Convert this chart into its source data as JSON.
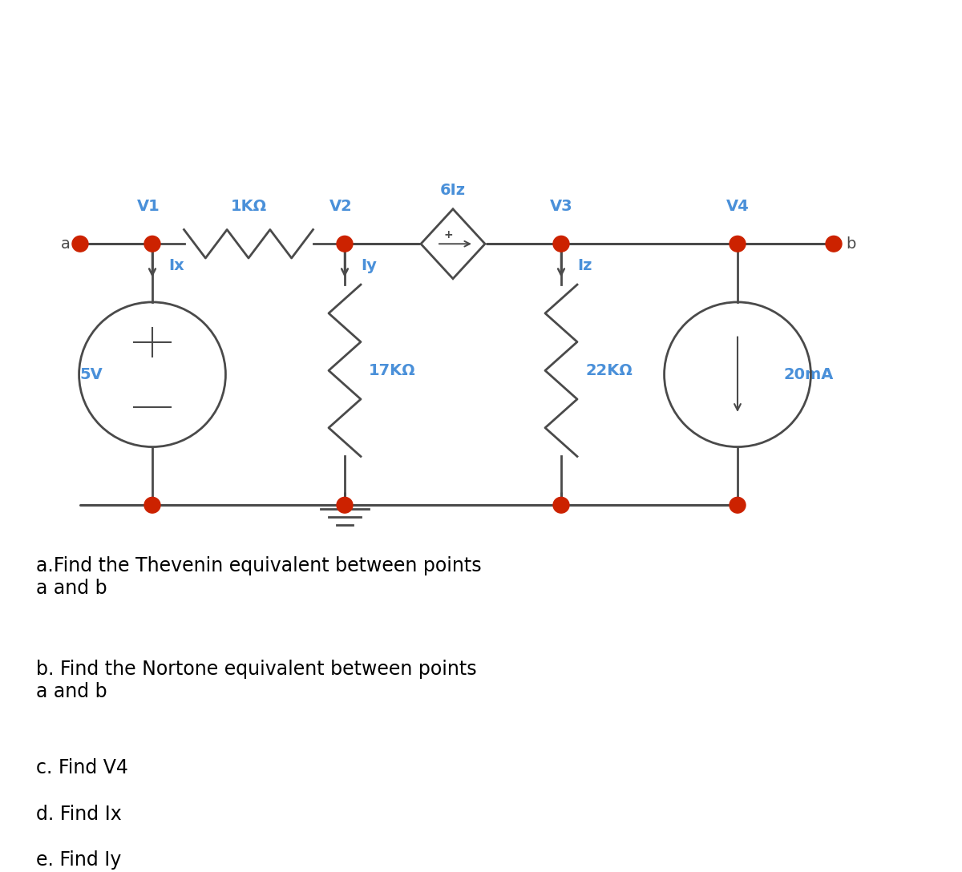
{
  "bg_color": "#ffffff",
  "circuit_color": "#4a4a4a",
  "blue_color": "#4a90d9",
  "node_color": "#cc2200",
  "text_color": "#000000",
  "questions": [
    "a.Find the Thevenin equivalent between points\na and b",
    "b. Find the Nortone equivalent between points\na and b",
    "c. Find V4",
    "d. Find Ix",
    "e. Find Iy"
  ]
}
